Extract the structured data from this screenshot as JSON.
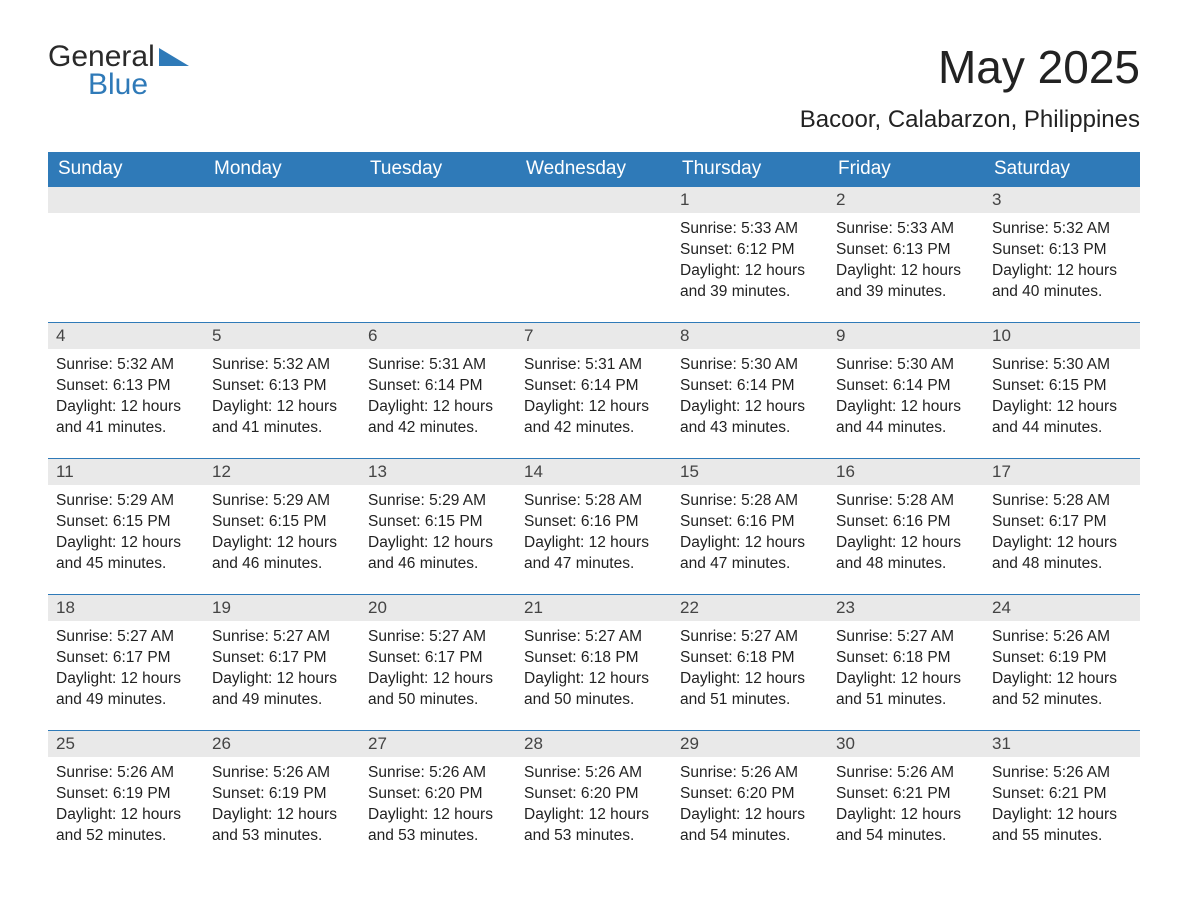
{
  "brand": {
    "word1": "General",
    "word2": "Blue",
    "accent_color": "#2f7ab8"
  },
  "title": "May 2025",
  "location": "Bacoor, Calabarzon, Philippines",
  "colors": {
    "header_bg": "#2f7ab8",
    "header_text": "#ffffff",
    "daynum_bg": "#e9e9e9",
    "text": "#222222",
    "row_border": "#2f7ab8",
    "page_bg": "#ffffff"
  },
  "typography": {
    "title_fontsize": 46,
    "subtitle_fontsize": 24,
    "dayheader_fontsize": 19,
    "daynum_fontsize": 17,
    "body_fontsize": 15.5,
    "font_family": "Arial"
  },
  "day_headers": [
    "Sunday",
    "Monday",
    "Tuesday",
    "Wednesday",
    "Thursday",
    "Friday",
    "Saturday"
  ],
  "weeks": [
    [
      null,
      null,
      null,
      null,
      {
        "n": "1",
        "sunrise": "5:33 AM",
        "sunset": "6:12 PM",
        "daylight": "12 hours and 39 minutes."
      },
      {
        "n": "2",
        "sunrise": "5:33 AM",
        "sunset": "6:13 PM",
        "daylight": "12 hours and 39 minutes."
      },
      {
        "n": "3",
        "sunrise": "5:32 AM",
        "sunset": "6:13 PM",
        "daylight": "12 hours and 40 minutes."
      }
    ],
    [
      {
        "n": "4",
        "sunrise": "5:32 AM",
        "sunset": "6:13 PM",
        "daylight": "12 hours and 41 minutes."
      },
      {
        "n": "5",
        "sunrise": "5:32 AM",
        "sunset": "6:13 PM",
        "daylight": "12 hours and 41 minutes."
      },
      {
        "n": "6",
        "sunrise": "5:31 AM",
        "sunset": "6:14 PM",
        "daylight": "12 hours and 42 minutes."
      },
      {
        "n": "7",
        "sunrise": "5:31 AM",
        "sunset": "6:14 PM",
        "daylight": "12 hours and 42 minutes."
      },
      {
        "n": "8",
        "sunrise": "5:30 AM",
        "sunset": "6:14 PM",
        "daylight": "12 hours and 43 minutes."
      },
      {
        "n": "9",
        "sunrise": "5:30 AM",
        "sunset": "6:14 PM",
        "daylight": "12 hours and 44 minutes."
      },
      {
        "n": "10",
        "sunrise": "5:30 AM",
        "sunset": "6:15 PM",
        "daylight": "12 hours and 44 minutes."
      }
    ],
    [
      {
        "n": "11",
        "sunrise": "5:29 AM",
        "sunset": "6:15 PM",
        "daylight": "12 hours and 45 minutes."
      },
      {
        "n": "12",
        "sunrise": "5:29 AM",
        "sunset": "6:15 PM",
        "daylight": "12 hours and 46 minutes."
      },
      {
        "n": "13",
        "sunrise": "5:29 AM",
        "sunset": "6:15 PM",
        "daylight": "12 hours and 46 minutes."
      },
      {
        "n": "14",
        "sunrise": "5:28 AM",
        "sunset": "6:16 PM",
        "daylight": "12 hours and 47 minutes."
      },
      {
        "n": "15",
        "sunrise": "5:28 AM",
        "sunset": "6:16 PM",
        "daylight": "12 hours and 47 minutes."
      },
      {
        "n": "16",
        "sunrise": "5:28 AM",
        "sunset": "6:16 PM",
        "daylight": "12 hours and 48 minutes."
      },
      {
        "n": "17",
        "sunrise": "5:28 AM",
        "sunset": "6:17 PM",
        "daylight": "12 hours and 48 minutes."
      }
    ],
    [
      {
        "n": "18",
        "sunrise": "5:27 AM",
        "sunset": "6:17 PM",
        "daylight": "12 hours and 49 minutes."
      },
      {
        "n": "19",
        "sunrise": "5:27 AM",
        "sunset": "6:17 PM",
        "daylight": "12 hours and 49 minutes."
      },
      {
        "n": "20",
        "sunrise": "5:27 AM",
        "sunset": "6:17 PM",
        "daylight": "12 hours and 50 minutes."
      },
      {
        "n": "21",
        "sunrise": "5:27 AM",
        "sunset": "6:18 PM",
        "daylight": "12 hours and 50 minutes."
      },
      {
        "n": "22",
        "sunrise": "5:27 AM",
        "sunset": "6:18 PM",
        "daylight": "12 hours and 51 minutes."
      },
      {
        "n": "23",
        "sunrise": "5:27 AM",
        "sunset": "6:18 PM",
        "daylight": "12 hours and 51 minutes."
      },
      {
        "n": "24",
        "sunrise": "5:26 AM",
        "sunset": "6:19 PM",
        "daylight": "12 hours and 52 minutes."
      }
    ],
    [
      {
        "n": "25",
        "sunrise": "5:26 AM",
        "sunset": "6:19 PM",
        "daylight": "12 hours and 52 minutes."
      },
      {
        "n": "26",
        "sunrise": "5:26 AM",
        "sunset": "6:19 PM",
        "daylight": "12 hours and 53 minutes."
      },
      {
        "n": "27",
        "sunrise": "5:26 AM",
        "sunset": "6:20 PM",
        "daylight": "12 hours and 53 minutes."
      },
      {
        "n": "28",
        "sunrise": "5:26 AM",
        "sunset": "6:20 PM",
        "daylight": "12 hours and 53 minutes."
      },
      {
        "n": "29",
        "sunrise": "5:26 AM",
        "sunset": "6:20 PM",
        "daylight": "12 hours and 54 minutes."
      },
      {
        "n": "30",
        "sunrise": "5:26 AM",
        "sunset": "6:21 PM",
        "daylight": "12 hours and 54 minutes."
      },
      {
        "n": "31",
        "sunrise": "5:26 AM",
        "sunset": "6:21 PM",
        "daylight": "12 hours and 55 minutes."
      }
    ]
  ],
  "labels": {
    "sunrise": "Sunrise: ",
    "sunset": "Sunset: ",
    "daylight": "Daylight: "
  }
}
